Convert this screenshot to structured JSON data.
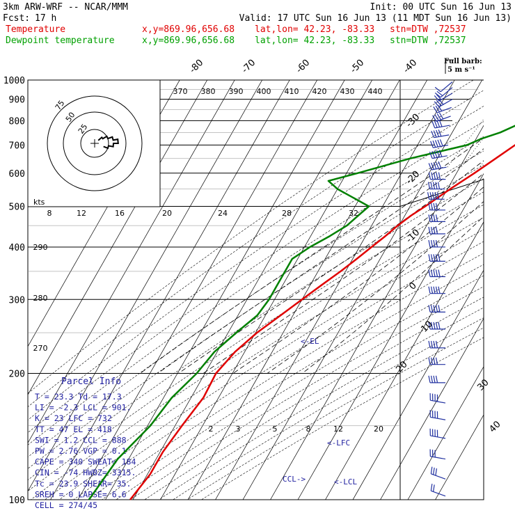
{
  "header": {
    "model": "3km ARW-WRF -- NCAR/MMM",
    "init": "Init: 00 UTC Sun 16 Jun 13",
    "fcst_label": "Fcst:",
    "fcst_value": "17 h",
    "valid": "Valid: 17 UTC Sun 16 Jun 13 (11 MDT Sun 16 Jun 13)",
    "lines": [
      {
        "name": "Temperature",
        "coords": "x,y=869.96,656.68",
        "latlon": "lat,lon= 42.23, -83.33",
        "stn": "stn=DTW ,72537",
        "color": "#e00000"
      },
      {
        "name": "Dewpoint temperature",
        "coords": "x,y=869.96,656.68",
        "latlon": "lat,lon= 42.23, -83.33",
        "stn": "stn=DTW ,72537",
        "color": "#00a000"
      }
    ]
  },
  "barb_legend": {
    "title": "Full barb:",
    "value": "5 m s⁻¹"
  },
  "hodograph": {
    "units": "kts",
    "rings": [
      "25",
      "50",
      "75"
    ]
  },
  "parcel_info": {
    "title": "Parcel Info",
    "rows": [
      "T   =   23.3  Td  =  17.3",
      "LI  =   -2.3  LCL =  901.",
      "K   =     23  LFC =   732",
      "TT  =     47  EL  =   418",
      "SWI =    1.2  CCL =   888",
      "PW  =   2.76  VGP =   0.1",
      "CAPE =   340  SWEAT=  184",
      "CIN  =   -74  HWBZ= 3315.",
      "Tc   =  23.9  SHEAR=  35.",
      "SREH =     0  LAPSE=  6.6",
      "CELL = 274/45"
    ]
  },
  "chart_data": {
    "type": "line",
    "diagram": "skew-T log-p",
    "pressure_levels": [
      "100",
      "200",
      "300",
      "400",
      "500",
      "600",
      "700",
      "800",
      "900",
      "1000"
    ],
    "isotherm_labels": [
      "-80",
      "-70",
      "-60",
      "-50",
      "-40",
      "-30",
      "-20",
      "-10",
      "0",
      "10",
      "20",
      "30",
      "40"
    ],
    "theta_labels": [
      "370",
      "380",
      "390",
      "400",
      "410",
      "420",
      "430",
      "440"
    ],
    "theta_labels_left": [
      "290",
      "280",
      "270"
    ],
    "theta_e_labels": [
      "8",
      "12",
      "16",
      "20",
      "24",
      "28",
      "32"
    ],
    "mixing_ratio_labels": [
      "2",
      "3",
      "5",
      "8",
      "12",
      "20"
    ],
    "markers": [
      "<-EL",
      "<-LFC",
      "<-LCL",
      "CCL->"
    ],
    "series": [
      {
        "name": "Temperature",
        "color": "#e00000",
        "points": [
          [
            1000,
            27.5
          ],
          [
            975,
            25.5
          ],
          [
            950,
            23
          ],
          [
            925,
            20.3
          ],
          [
            900,
            18.3
          ],
          [
            875,
            17.0
          ],
          [
            850,
            15.8
          ],
          [
            825,
            14.3
          ],
          [
            800,
            12.8
          ],
          [
            750,
            9.2
          ],
          [
            700,
            5.5
          ],
          [
            650,
            1.2
          ],
          [
            600,
            -3.5
          ],
          [
            550,
            -9.0
          ],
          [
            500,
            -14.5
          ],
          [
            475,
            -17.8
          ],
          [
            450,
            -20.5
          ],
          [
            425,
            -22.8
          ],
          [
            400,
            -25.6
          ],
          [
            375,
            -28.5
          ],
          [
            350,
            -31.8
          ],
          [
            325,
            -35.8
          ],
          [
            300,
            -40.0
          ],
          [
            275,
            -44.5
          ],
          [
            250,
            -49.5
          ],
          [
            225,
            -53.5
          ],
          [
            200,
            -56.0
          ],
          [
            175,
            -55.5
          ],
          [
            150,
            -57.5
          ],
          [
            130,
            -59
          ],
          [
            115,
            -59
          ],
          [
            100,
            -61
          ]
        ]
      },
      {
        "name": "Dewpoint temperature",
        "color": "#008000",
        "points": [
          [
            1000,
            16.8
          ],
          [
            975,
            17.3
          ],
          [
            950,
            16.8
          ],
          [
            925,
            14.5
          ],
          [
            900,
            12.8
          ],
          [
            875,
            11.8
          ],
          [
            850,
            10.0
          ],
          [
            825,
            8.0
          ],
          [
            800,
            4.5
          ],
          [
            750,
            -2.5
          ],
          [
            725,
            -8.0
          ],
          [
            700,
            -12.0
          ],
          [
            650,
            -30
          ],
          [
            600,
            -46
          ],
          [
            575,
            -55
          ],
          [
            550,
            -50
          ],
          [
            500,
            -35
          ],
          [
            475,
            -37
          ],
          [
            450,
            -39
          ],
          [
            425,
            -43
          ],
          [
            400,
            -48
          ],
          [
            375,
            -52
          ],
          [
            350,
            -52
          ],
          [
            325,
            -52
          ],
          [
            300,
            -52
          ],
          [
            275,
            -53
          ],
          [
            250,
            -57
          ],
          [
            225,
            -61
          ],
          [
            200,
            -63
          ],
          [
            175,
            -67
          ],
          [
            150,
            -69
          ],
          [
            125,
            -74
          ],
          [
            100,
            -76
          ]
        ]
      }
    ],
    "wind_profile": [
      {
        "p": 990,
        "dir": 230,
        "spd": 5
      },
      {
        "p": 960,
        "dir": 230,
        "spd": 10
      },
      {
        "p": 930,
        "dir": 240,
        "spd": 10
      },
      {
        "p": 900,
        "dir": 240,
        "spd": 15
      },
      {
        "p": 860,
        "dir": 250,
        "spd": 15
      },
      {
        "p": 820,
        "dir": 250,
        "spd": 20
      },
      {
        "p": 780,
        "dir": 260,
        "spd": 20
      },
      {
        "p": 740,
        "dir": 260,
        "spd": 20
      },
      {
        "p": 700,
        "dir": 260,
        "spd": 25
      },
      {
        "p": 660,
        "dir": 260,
        "spd": 25
      },
      {
        "p": 620,
        "dir": 260,
        "spd": 25
      },
      {
        "p": 580,
        "dir": 270,
        "spd": 25
      },
      {
        "p": 550,
        "dir": 270,
        "spd": 25
      },
      {
        "p": 520,
        "dir": 270,
        "spd": 25
      },
      {
        "p": 490,
        "dir": 270,
        "spd": 20
      },
      {
        "p": 460,
        "dir": 270,
        "spd": 20
      },
      {
        "p": 430,
        "dir": 270,
        "spd": 20
      },
      {
        "p": 400,
        "dir": 270,
        "spd": 20
      },
      {
        "p": 370,
        "dir": 270,
        "spd": 25
      },
      {
        "p": 340,
        "dir": 270,
        "spd": 25
      },
      {
        "p": 310,
        "dir": 270,
        "spd": 25
      },
      {
        "p": 280,
        "dir": 270,
        "spd": 25
      },
      {
        "p": 255,
        "dir": 270,
        "spd": 25
      },
      {
        "p": 230,
        "dir": 270,
        "spd": 20
      },
      {
        "p": 210,
        "dir": 270,
        "spd": 20
      },
      {
        "p": 190,
        "dir": 270,
        "spd": 20
      },
      {
        "p": 170,
        "dir": 280,
        "spd": 20
      },
      {
        "p": 155,
        "dir": 280,
        "spd": 20
      },
      {
        "p": 140,
        "dir": 280,
        "spd": 20
      },
      {
        "p": 125,
        "dir": 280,
        "spd": 15
      },
      {
        "p": 112,
        "dir": 290,
        "spd": 15
      },
      {
        "p": 102,
        "dir": 290,
        "spd": 10
      }
    ]
  }
}
